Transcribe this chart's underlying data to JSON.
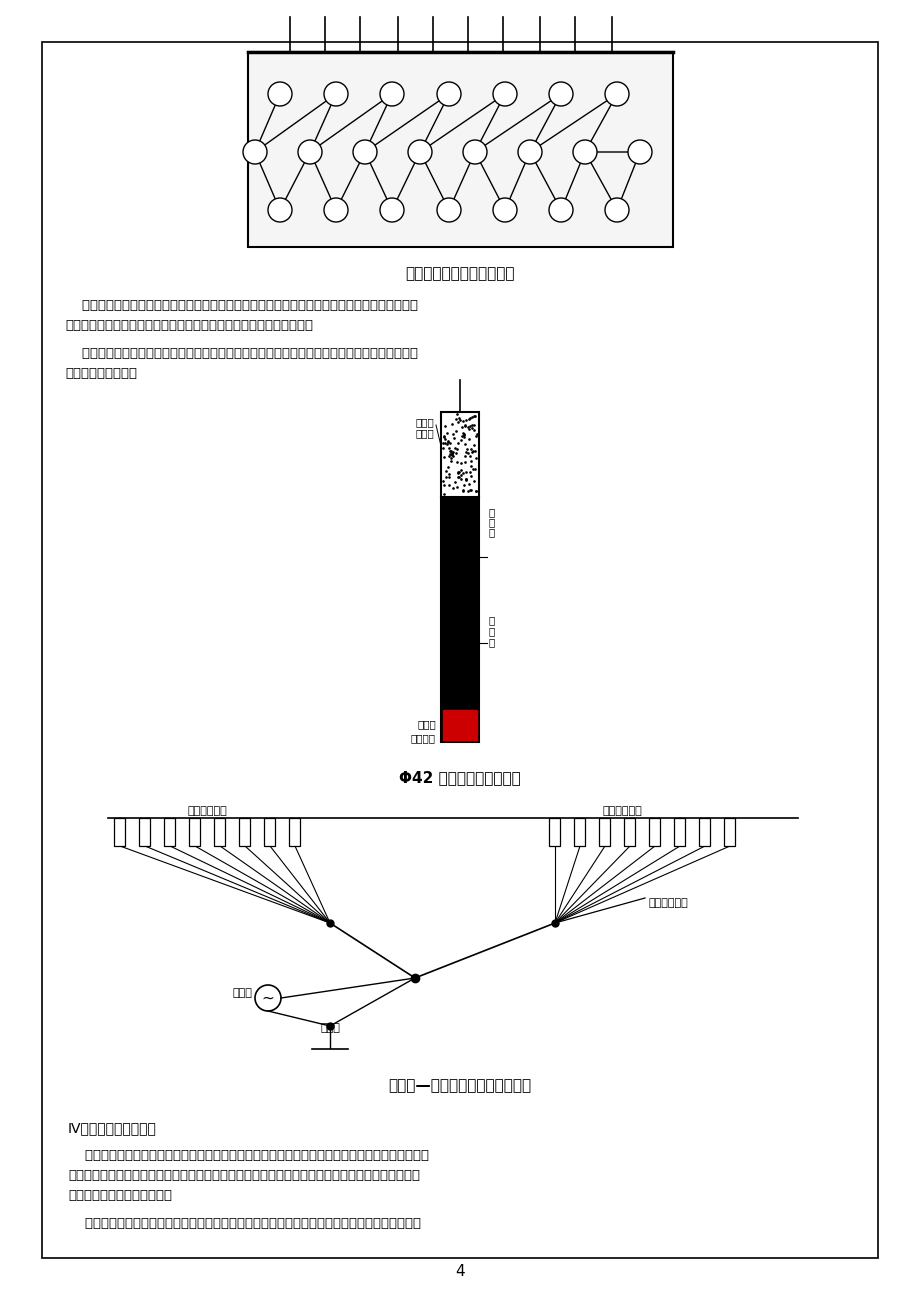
{
  "page_bg": "#ffffff",
  "border_color": "#000000",
  "text_color": "#000000",
  "page_number": "4",
  "title1": "矩形布孔波浪形起爆顺序图",
  "title2": "Φ42 浅眼集中装药结构图",
  "title3": "电雷管—非电毫秒雷管网路联接图",
  "section_title": "IV、爆破震动安全控制"
}
